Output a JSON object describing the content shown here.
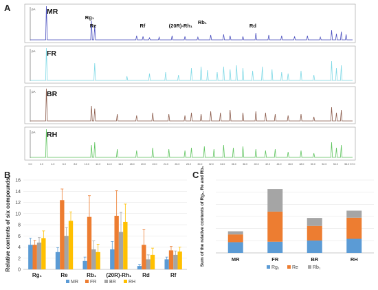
{
  "panel_labels": {
    "a": "A",
    "b": "B",
    "c": "C"
  },
  "chromatograms": {
    "traces": [
      {
        "name": "MR",
        "color": "#4a4fbf",
        "peak_labels": [
          "Rg₁",
          "Re",
          "Rf",
          "(20R)-Rh₁",
          "Rb₁",
          "Rd"
        ]
      },
      {
        "name": "FR",
        "color": "#7fd9e6",
        "peak_labels": []
      },
      {
        "name": "BR",
        "color": "#8a5a4a",
        "peak_labels": []
      },
      {
        "name": "RH",
        "color": "#5ec45e",
        "peak_labels": []
      }
    ],
    "y_unit": "pA",
    "x_ticks": [
      "0.0",
      "2.0",
      "4.0",
      "6.0",
      "8.0",
      "10.0",
      "12.0",
      "14.0",
      "16.0",
      "18.0",
      "20.0",
      "22.0",
      "24.0",
      "26.0",
      "28.0",
      "30.0",
      "32.0",
      "34.0",
      "36.0",
      "38.0",
      "40.0",
      "42.0",
      "44.0",
      "46.0",
      "48.0",
      "50.0",
      "52.0",
      "54.0",
      "56.0",
      "57.0"
    ]
  },
  "chart_data": [
    {
      "type": "bar",
      "ylabel": "Relative contents of six compounds",
      "ylim": [
        0,
        16
      ],
      "yticks": [
        0,
        2,
        4,
        6,
        8,
        10,
        12,
        14,
        16
      ],
      "categories": [
        "Rg₁",
        "Re",
        "Rb₁",
        "(20R)-Rh₁",
        "Rd",
        "Rf"
      ],
      "series": [
        {
          "name": "MR",
          "color": "#5b9bd5",
          "values": [
            4.4,
            3.1,
            1.5,
            3.6,
            0.6,
            1.8
          ],
          "errors": [
            1.2,
            0.8,
            0.7,
            1.4,
            0.3,
            0.4
          ]
        },
        {
          "name": "FR",
          "color": "#ed7d31",
          "values": [
            4.4,
            12.4,
            9.4,
            9.6,
            4.4,
            3.4
          ],
          "errors": [
            0.8,
            2.0,
            3.8,
            4.5,
            2.8,
            0.7
          ]
        },
        {
          "name": "BR",
          "color": "#a5a5a5",
          "values": [
            4.8,
            6.0,
            3.6,
            6.7,
            1.8,
            2.6
          ],
          "errors": [
            0.9,
            1.5,
            1.5,
            3.5,
            0.8,
            0.7
          ]
        },
        {
          "name": "RH",
          "color": "#ffc000",
          "values": [
            5.6,
            8.7,
            3.1,
            8.5,
            2.6,
            3.2
          ],
          "errors": [
            1.3,
            1.6,
            1.4,
            3.2,
            1.2,
            0.8
          ]
        }
      ],
      "legend_position": "bottom"
    },
    {
      "type": "bar",
      "stacked": true,
      "ylabel": "Sum of the relative contents of Rg₁, Re and Rb₁",
      "ylim": [
        0,
        30
      ],
      "categories": [
        "MR",
        "FR",
        "BR",
        "RH"
      ],
      "series": [
        {
          "name": "Rg₁",
          "color": "#5b9bd5",
          "values": [
            4.4,
            4.6,
            5.1,
            5.8
          ]
        },
        {
          "name": "Re",
          "color": "#ed7d31",
          "values": [
            3.2,
            12.4,
            6.0,
            8.7
          ]
        },
        {
          "name": "Rb₁",
          "color": "#a5a5a5",
          "values": [
            1.3,
            9.3,
            3.3,
            2.9
          ]
        }
      ],
      "legend_position": "bottom"
    }
  ]
}
